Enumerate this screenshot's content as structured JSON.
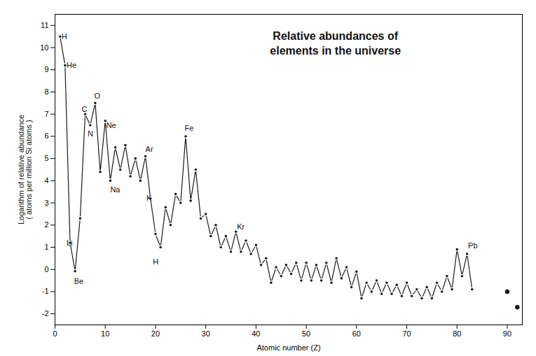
{
  "chart_data": {
    "type": "line",
    "title": "Relative abundances of\nelements in the universe",
    "xlabel": "Atomic number (Z)",
    "ylabel": "Logarithm of relative abundance\n( atoms per million Si atoms )",
    "xlim": [
      0,
      93
    ],
    "ylim": [
      -2.5,
      11.5
    ],
    "xticks": [
      0,
      10,
      20,
      30,
      40,
      50,
      60,
      70,
      80,
      90
    ],
    "yticks": [
      -2,
      -1,
      0,
      1,
      2,
      3,
      4,
      5,
      6,
      7,
      8,
      9,
      10,
      11
    ],
    "grid": false,
    "series": [
      {
        "type": "line",
        "marker": "circle",
        "color": "#1a1a1a",
        "x": [
          1,
          2,
          3,
          4,
          5,
          6,
          7,
          8,
          9,
          10,
          11,
          12,
          13,
          14,
          15,
          16,
          17,
          18,
          19,
          20,
          21,
          22,
          23,
          24,
          25,
          26,
          27,
          28,
          29,
          30,
          31,
          32,
          33,
          34,
          35,
          36,
          37,
          38,
          39,
          40,
          41,
          42,
          43,
          44,
          45,
          46,
          47,
          48,
          49,
          50,
          51,
          52,
          53,
          54,
          55,
          56,
          57,
          58,
          59,
          60,
          61,
          62,
          63,
          64,
          65,
          66,
          67,
          68,
          69,
          70,
          71,
          72,
          73,
          74,
          75,
          76,
          77,
          78,
          79,
          80,
          81,
          82,
          83
        ],
        "values": [
          10.5,
          9.2,
          1.2,
          -0.08,
          2.3,
          7.0,
          6.5,
          7.5,
          4.4,
          6.7,
          4.0,
          5.5,
          4.5,
          5.6,
          4.2,
          5.0,
          4.0,
          5.1,
          3.2,
          1.6,
          1.0,
          2.8,
          2.0,
          3.4,
          3.0,
          6.0,
          3.1,
          4.5,
          2.3,
          2.5,
          1.5,
          2.0,
          1.0,
          1.5,
          0.8,
          1.7,
          0.8,
          1.3,
          0.7,
          1.1,
          0.2,
          0.5,
          -0.6,
          0.1,
          -0.3,
          0.2,
          -0.2,
          0.3,
          -0.5,
          0.3,
          -0.5,
          0.2,
          -0.5,
          0.3,
          -0.6,
          0.5,
          -0.4,
          0.1,
          -0.8,
          -0.1,
          -1.3,
          -0.6,
          -1.0,
          -0.5,
          -1.1,
          -0.6,
          -1.1,
          -0.7,
          -1.2,
          -0.6,
          -1.2,
          -0.9,
          -1.3,
          -0.8,
          -1.3,
          -0.6,
          -1.0,
          -0.3,
          -0.9,
          0.9,
          -0.3,
          0.7,
          -0.9
        ]
      },
      {
        "type": "scatter",
        "marker": "circle",
        "color": "#1a1a1a",
        "x": [
          90,
          92
        ],
        "values": [
          -1.0,
          -1.7
        ]
      }
    ],
    "annotations": [
      {
        "text": "H",
        "x": 1.3,
        "y": 10.5
      },
      {
        "text": "He",
        "x": 2.3,
        "y": 9.2
      },
      {
        "text": "Li",
        "x": 2.3,
        "y": 1.2
      },
      {
        "text": "Be",
        "x": 3.8,
        "y": -0.55
      },
      {
        "text": "C",
        "x": 5.3,
        "y": 7.2
      },
      {
        "text": "N",
        "x": 6.5,
        "y": 6.1
      },
      {
        "text": "O",
        "x": 7.8,
        "y": 7.8
      },
      {
        "text": "Ne",
        "x": 10.2,
        "y": 6.5
      },
      {
        "text": "Na",
        "x": 11.0,
        "y": 3.6
      },
      {
        "text": "Ar",
        "x": 18.0,
        "y": 5.4
      },
      {
        "text": "K",
        "x": 18.2,
        "y": 3.2
      },
      {
        "text": "Fe",
        "x": 25.8,
        "y": 6.35
      },
      {
        "text": "Kr",
        "x": 36.2,
        "y": 1.9
      },
      {
        "text": "H",
        "x": 19.5,
        "y": 0.35
      },
      {
        "text": "Pb",
        "x": 82.2,
        "y": 1.05
      }
    ]
  }
}
